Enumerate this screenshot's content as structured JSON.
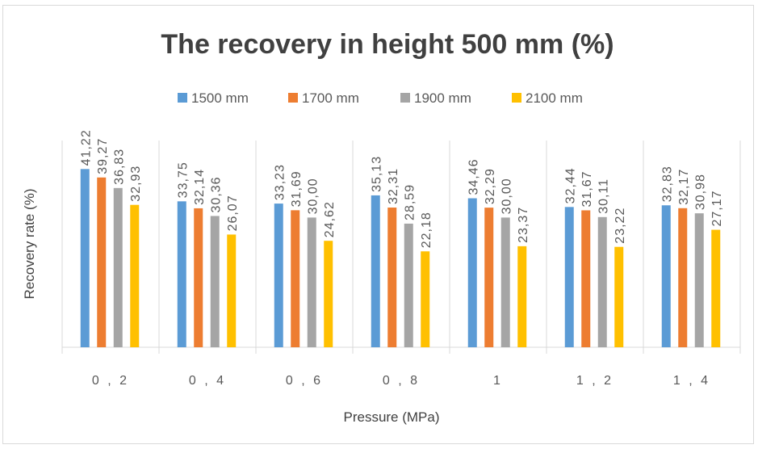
{
  "chart_data": {
    "type": "bar",
    "title": "The recovery in height 500 mm (%)",
    "xlabel": "Pressure (MPa)",
    "ylabel": "Recovery rate (%)",
    "categories": [
      "0,2",
      "0,4",
      "0,6",
      "0,8",
      "1",
      "1,2",
      "1,4"
    ],
    "category_display": [
      "0 , 2",
      "0 , 4",
      "0 , 6",
      "0 , 8",
      "1",
      "1 , 2",
      "1 , 4"
    ],
    "series": [
      {
        "name": "1500 mm",
        "color": "#5b9bd5",
        "values": [
          41.22,
          33.75,
          33.23,
          35.13,
          34.46,
          32.44,
          32.83
        ],
        "labels": [
          "41,22",
          "33,75",
          "33,23",
          "35,13",
          "34,46",
          "32,44",
          "32,83"
        ]
      },
      {
        "name": "1700 mm",
        "color": "#ed7d31",
        "values": [
          39.27,
          32.14,
          31.69,
          32.31,
          32.29,
          31.67,
          32.17
        ],
        "labels": [
          "39,27",
          "32,14",
          "31,69",
          "32,31",
          "32,29",
          "31,67",
          "32,17"
        ]
      },
      {
        "name": "1900 mm",
        "color": "#a5a5a5",
        "values": [
          36.83,
          30.36,
          30.0,
          28.59,
          30.0,
          30.11,
          30.98
        ],
        "labels": [
          "36,83",
          "30,36",
          "30,00",
          "28,59",
          "30,00",
          "30,11",
          "30,98"
        ]
      },
      {
        "name": "2100 mm",
        "color": "#ffc000",
        "values": [
          32.93,
          26.07,
          24.62,
          22.18,
          23.37,
          23.22,
          27.17
        ],
        "labels": [
          "32,93",
          "26,07",
          "24,62",
          "22,18",
          "23,37",
          "23,22",
          "27,17"
        ]
      }
    ],
    "ylim": [
      0,
      50
    ],
    "grid": false,
    "category_separators": true,
    "legend": "top",
    "data_labels": "rotated-vertical"
  }
}
